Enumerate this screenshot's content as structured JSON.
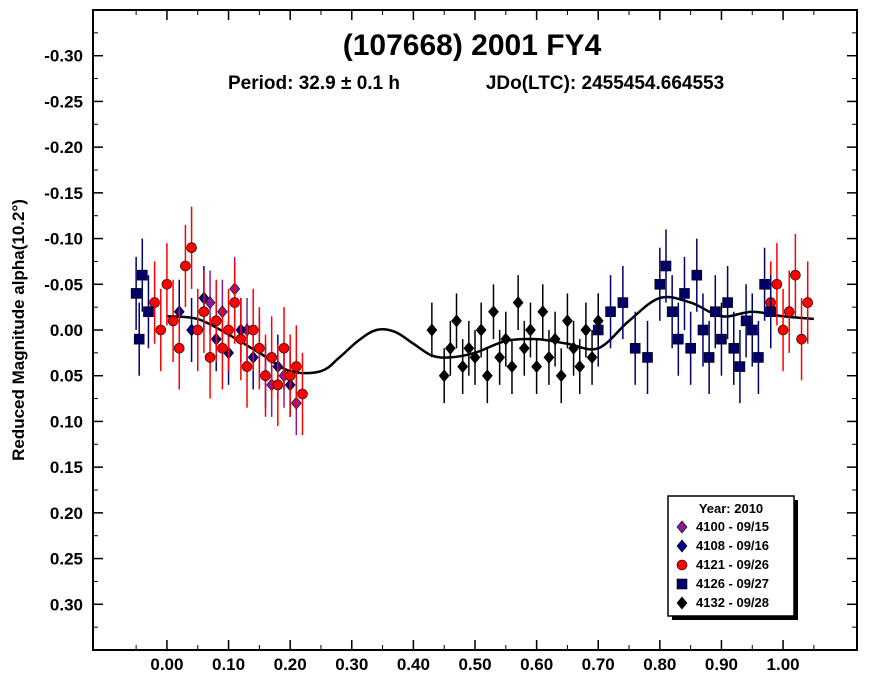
{
  "chart_data": {
    "type": "scatter",
    "title": "(107668) 2001 FY4",
    "subtitle_period": "Period: 32.9 ± 0.1 h",
    "subtitle_epoch": "JDo(LTC): 2455454.664553",
    "xlabel": "",
    "ylabel": "Reduced Magnitude alpha(10.2°)",
    "xlim": [
      -0.12,
      1.12
    ],
    "ylim": [
      -0.35,
      0.35
    ],
    "y_inverted": true,
    "x_ticks": [
      "0.00",
      "0.10",
      "0.20",
      "0.30",
      "0.40",
      "0.50",
      "0.60",
      "0.70",
      "0.80",
      "0.90",
      "1.00"
    ],
    "y_ticks": [
      "-0.30",
      "-0.25",
      "-0.20",
      "-0.15",
      "-0.10",
      "-0.05",
      "0.00",
      "0.05",
      "0.10",
      "0.15",
      "0.20",
      "0.25",
      "0.30"
    ],
    "legend": {
      "title": "Year: 2010",
      "placement": "bottom-right",
      "entries": [
        {
          "label": "4100 - 09/15",
          "color": "#8B1A9B",
          "marker": "diamond"
        },
        {
          "label": "4108 - 09/16",
          "color": "#00008B",
          "marker": "diamond"
        },
        {
          "label": "4121 - 09/26",
          "color": "#FF0000",
          "marker": "circle"
        },
        {
          "label": "4126 - 09/27",
          "color": "#000066",
          "marker": "square"
        },
        {
          "label": "4132 - 09/28",
          "color": "#000000",
          "marker": "diamond"
        }
      ]
    },
    "fit_curve": {
      "color": "#000000",
      "x": [
        0.0,
        0.05,
        0.1,
        0.15,
        0.2,
        0.25,
        0.28,
        0.31,
        0.34,
        0.37,
        0.4,
        0.43,
        0.46,
        0.5,
        0.55,
        0.6,
        0.65,
        0.7,
        0.75,
        0.8,
        0.85,
        0.9,
        0.95,
        1.0,
        1.05
      ],
      "y": [
        -0.015,
        -0.012,
        0.005,
        0.025,
        0.045,
        0.045,
        0.03,
        0.012,
        0.0,
        0.002,
        0.015,
        0.028,
        0.03,
        0.025,
        0.012,
        0.01,
        0.015,
        0.02,
        -0.01,
        -0.035,
        -0.03,
        -0.015,
        -0.02,
        -0.015,
        -0.012
      ]
    },
    "series": [
      {
        "name": "4100 - 09/15",
        "color": "#8B1A9B",
        "marker": "diamond",
        "err": 0.035,
        "x": [
          0.07,
          0.09,
          0.11,
          0.13,
          0.15,
          0.17,
          0.19,
          0.21
        ],
        "y": [
          -0.03,
          -0.02,
          -0.045,
          0.0,
          0.02,
          0.06,
          0.05,
          0.08
        ]
      },
      {
        "name": "4108 - 09/16",
        "color": "#00008B",
        "marker": "diamond",
        "err": 0.035,
        "x": [
          0.02,
          0.04,
          0.06,
          0.08,
          0.1,
          0.12,
          0.14,
          0.16,
          0.18,
          0.2
        ],
        "y": [
          -0.02,
          0.0,
          -0.035,
          0.01,
          0.025,
          0.0,
          0.03,
          0.05,
          0.04,
          0.06
        ]
      },
      {
        "name": "4121 - 09/26",
        "color": "#FF0000",
        "marker": "circle",
        "err": 0.045,
        "x": [
          -0.02,
          -0.01,
          0.0,
          0.01,
          0.02,
          0.03,
          0.04,
          0.05,
          0.06,
          0.07,
          0.08,
          0.09,
          0.1,
          0.11,
          0.12,
          0.13,
          0.14,
          0.15,
          0.16,
          0.17,
          0.18,
          0.19,
          0.2,
          0.21,
          0.22,
          0.98,
          0.99,
          1.0,
          1.01,
          1.02,
          1.03,
          1.04
        ],
        "y": [
          -0.03,
          0.0,
          -0.05,
          -0.01,
          0.02,
          -0.07,
          -0.09,
          0.0,
          -0.02,
          0.03,
          -0.01,
          0.02,
          0.0,
          -0.03,
          0.01,
          0.04,
          0.0,
          0.02,
          0.05,
          0.03,
          0.06,
          0.02,
          0.05,
          0.04,
          0.07,
          -0.03,
          -0.05,
          0.0,
          -0.02,
          -0.06,
          0.01,
          -0.03
        ]
      },
      {
        "name": "4126 - 09/27",
        "color": "#000066",
        "marker": "square",
        "err": 0.04,
        "x": [
          -0.05,
          -0.04,
          -0.03,
          0.7,
          0.72,
          0.74,
          0.76,
          0.78,
          0.8,
          0.81,
          0.82,
          0.83,
          0.84,
          0.85,
          0.86,
          0.87,
          0.88,
          0.89,
          0.9,
          0.91,
          0.92,
          0.93,
          0.94,
          0.95,
          0.96,
          0.97,
          0.98,
          -0.045
        ],
        "y": [
          -0.04,
          -0.06,
          -0.02,
          0.0,
          -0.02,
          -0.03,
          0.02,
          0.03,
          -0.05,
          -0.07,
          -0.02,
          0.01,
          -0.04,
          0.02,
          -0.06,
          0.0,
          0.03,
          -0.02,
          0.01,
          -0.03,
          0.02,
          0.04,
          -0.01,
          0.0,
          0.03,
          -0.05,
          -0.02,
          0.01
        ]
      },
      {
        "name": "4132 - 09/28",
        "color": "#000000",
        "marker": "diamond",
        "err": 0.03,
        "x": [
          0.43,
          0.45,
          0.46,
          0.47,
          0.48,
          0.49,
          0.5,
          0.51,
          0.52,
          0.53,
          0.54,
          0.55,
          0.56,
          0.57,
          0.58,
          0.59,
          0.6,
          0.61,
          0.62,
          0.63,
          0.64,
          0.65,
          0.66,
          0.67,
          0.68,
          0.69,
          0.7
        ],
        "y": [
          0.0,
          0.05,
          0.02,
          -0.01,
          0.04,
          0.02,
          0.03,
          0.0,
          0.05,
          -0.02,
          0.03,
          0.01,
          0.04,
          -0.03,
          0.02,
          0.0,
          0.04,
          -0.02,
          0.03,
          0.01,
          0.05,
          -0.01,
          0.02,
          0.04,
          0.0,
          0.03,
          -0.01
        ]
      }
    ]
  }
}
